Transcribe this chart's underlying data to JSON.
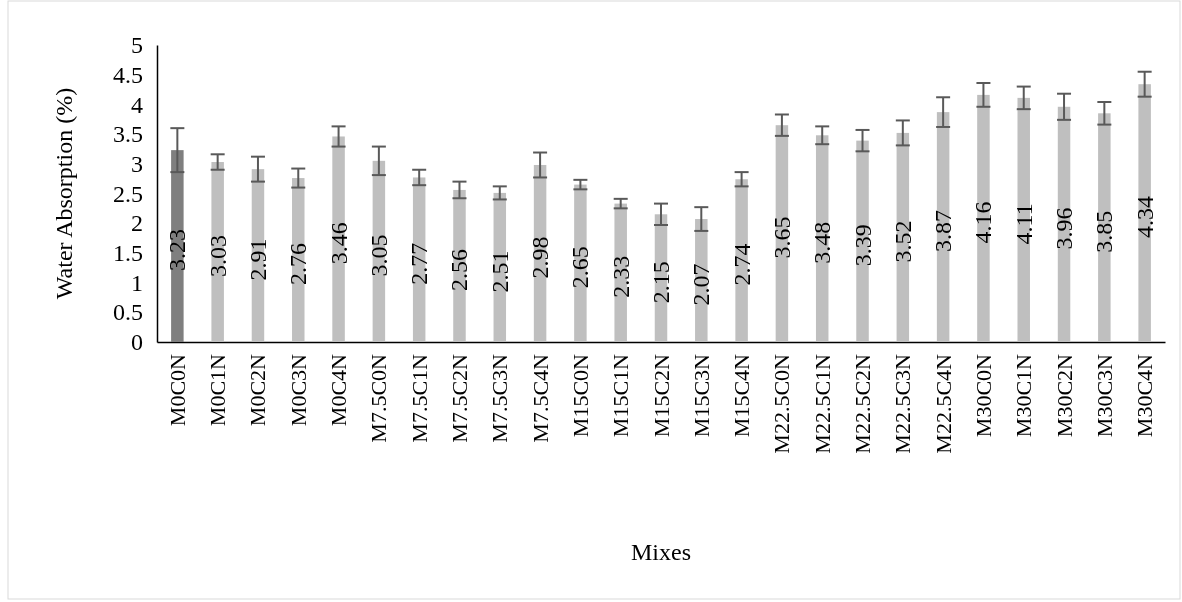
{
  "chart_data": {
    "type": "bar",
    "xlabel": "Mixes",
    "ylabel": "Water Absorption (%)",
    "categories": [
      "M0C0N",
      "M0C1N",
      "M0C2N",
      "M0C3N",
      "M0C4N",
      "M7.5C0N",
      "M7.5C1N",
      "M7.5C2N",
      "M7.5C3N",
      "M7.5C4N",
      "M15C0N",
      "M15C1N",
      "M15C2N",
      "M15C3N",
      "M15C4N",
      "M22.5C0N",
      "M22.5C1N",
      "M22.5C2N",
      "M22.5C3N",
      "M22.5C4N",
      "M30C0N",
      "M30C1N",
      "M30C2N",
      "M30C3N",
      "M30C4N"
    ],
    "values": [
      3.23,
      3.03,
      2.91,
      2.76,
      3.46,
      3.05,
      2.77,
      2.56,
      2.51,
      2.98,
      2.65,
      2.33,
      2.15,
      2.07,
      2.74,
      3.65,
      3.48,
      3.39,
      3.52,
      3.87,
      4.16,
      4.11,
      3.96,
      3.85,
      4.34
    ],
    "errors": [
      0.37,
      0.13,
      0.21,
      0.16,
      0.17,
      0.24,
      0.13,
      0.14,
      0.11,
      0.21,
      0.08,
      0.08,
      0.18,
      0.2,
      0.12,
      0.18,
      0.15,
      0.18,
      0.21,
      0.25,
      0.2,
      0.19,
      0.22,
      0.19,
      0.21
    ],
    "colors": [
      "#7f7f7f",
      "#bfbfbf",
      "#bfbfbf",
      "#bfbfbf",
      "#bfbfbf",
      "#bfbfbf",
      "#bfbfbf",
      "#bfbfbf",
      "#bfbfbf",
      "#bfbfbf",
      "#bfbfbf",
      "#bfbfbf",
      "#bfbfbf",
      "#bfbfbf",
      "#bfbfbf",
      "#bfbfbf",
      "#bfbfbf",
      "#bfbfbf",
      "#bfbfbf",
      "#bfbfbf",
      "#bfbfbf",
      "#bfbfbf",
      "#bfbfbf",
      "#bfbfbf",
      "#bfbfbf"
    ],
    "ylim": [
      0,
      5
    ],
    "yticks": [
      0,
      0.5,
      1,
      1.5,
      2,
      2.5,
      3,
      3.5,
      4,
      4.5,
      5
    ],
    "data_labels": true,
    "grid": false
  }
}
